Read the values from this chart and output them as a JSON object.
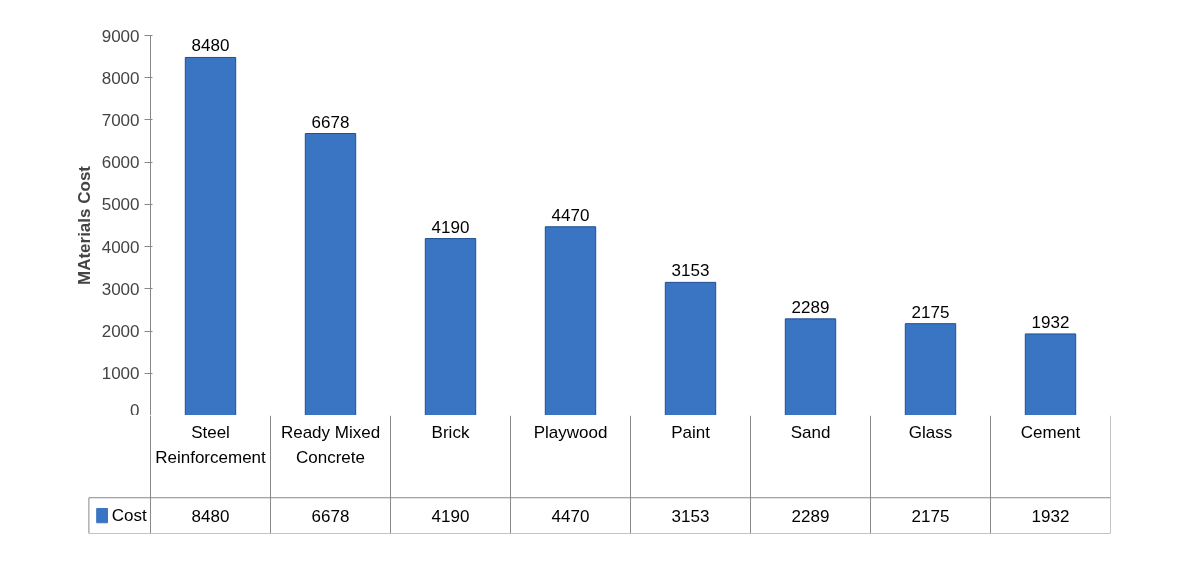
{
  "chart_data": {
    "type": "bar",
    "ylabel": "MAterials Cost",
    "categories": [
      "Steel Reinforcement",
      "Ready Mixed Concrete",
      "Brick",
      "Playwood",
      "Paint",
      "Sand",
      "Glass",
      "Cement"
    ],
    "series": [
      {
        "name": "Cost",
        "color": "#3a75c4",
        "values": [
          8480,
          6678,
          4190,
          4470,
          3153,
          2289,
          2175,
          1932
        ],
        "value_labels": [
          "8480",
          "6678",
          "4190",
          "4470",
          "3153",
          "2289",
          "2175",
          "1932"
        ]
      }
    ],
    "ylim": [
      0,
      9000
    ],
    "yticks": [
      0,
      1000,
      2000,
      3000,
      4000,
      5000,
      6000,
      7000,
      8000,
      9000
    ],
    "data_labels": true,
    "legend": "bottom"
  }
}
